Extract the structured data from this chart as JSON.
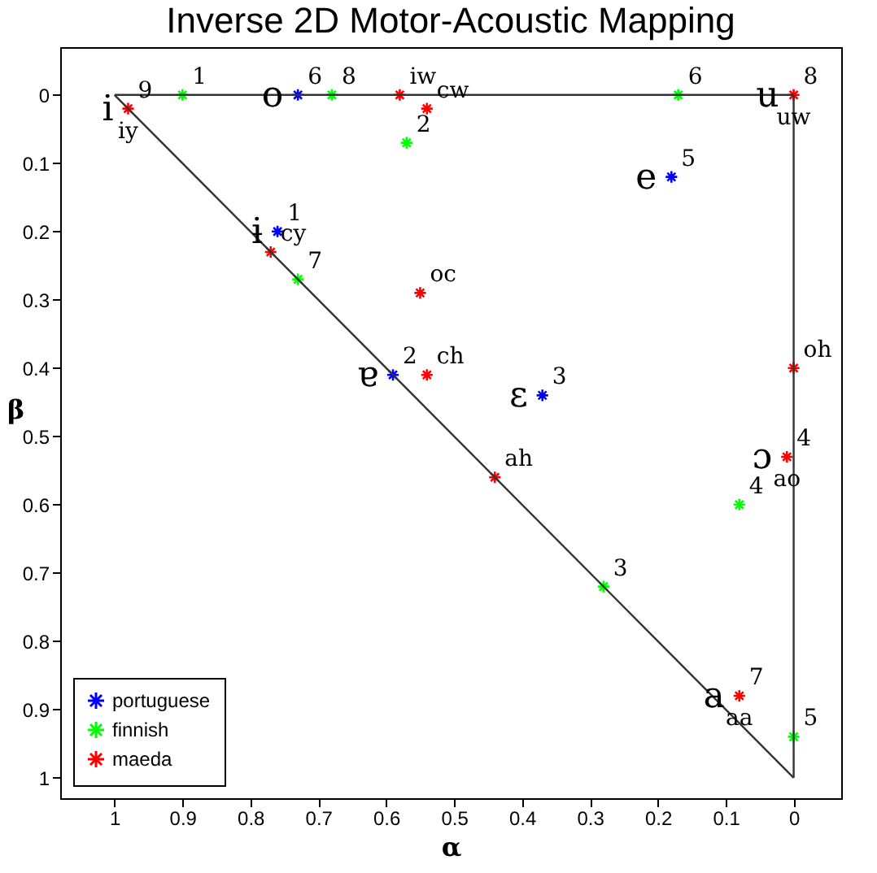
{
  "chart_data": {
    "type": "scatter",
    "title": "Inverse 2D Motor-Acoustic Mapping",
    "xlabel": "α",
    "ylabel": "β",
    "xlim": [
      1.08,
      -0.07
    ],
    "ylim": [
      1.03,
      -0.07
    ],
    "xticks": [
      1,
      0.9,
      0.8,
      0.7,
      0.6,
      0.5,
      0.4,
      0.3,
      0.2,
      0.1,
      0
    ],
    "yticks": [
      0,
      0.1,
      0.2,
      0.3,
      0.4,
      0.5,
      0.6,
      0.7,
      0.8,
      0.9,
      1
    ],
    "legend": "bottom left",
    "marker": "cross",
    "series": [
      {
        "name": "portuguese",
        "color": "#0000ff",
        "x": [
          0.73,
          0.76,
          0.59,
          0.18,
          0.37
        ],
        "values": [
          0,
          0.2,
          0.41,
          0.12,
          0.44
        ]
      },
      {
        "name": "finnish",
        "color": "#00ff00",
        "x": [
          0.9,
          0.68,
          0.57,
          0.73,
          0.17,
          0.28,
          0.08,
          0
        ],
        "values": [
          0,
          0,
          0.07,
          0.27,
          0,
          0.72,
          0.6,
          0.94
        ]
      },
      {
        "name": "maeda",
        "color": "#ff0000",
        "x": [
          0.98,
          0.58,
          0.54,
          0.77,
          0.55,
          0.54,
          0,
          0,
          0.01,
          0.44,
          0.08
        ],
        "values": [
          0.02,
          0,
          0.02,
          0.23,
          0.29,
          0.41,
          0,
          0.4,
          0.53,
          0.56,
          0.88
        ]
      },
      {
        "type": "line",
        "color": "#333333",
        "marker": "none",
        "x": [
          1,
          0
        ],
        "values": [
          0,
          0
        ]
      },
      {
        "type": "line",
        "color": "#333333",
        "marker": "none",
        "x": [
          0,
          0
        ],
        "values": [
          0,
          1
        ]
      },
      {
        "type": "line",
        "color": "#333333",
        "marker": "none",
        "x": [
          0,
          1
        ],
        "values": [
          1,
          0
        ]
      }
    ],
    "annotations": [
      {
        "text": "6",
        "x": 0.73,
        "y": 0
      },
      {
        "text": "o",
        "x": 0.73,
        "y": 0
      },
      {
        "text": "1",
        "x": 0.76,
        "y": 0.2
      },
      {
        "text": "ɨ",
        "x": 0.76,
        "y": 0.2
      },
      {
        "text": "2",
        "x": 0.59,
        "y": 0.41
      },
      {
        "text": "ɐ",
        "x": 0.59,
        "y": 0.41
      },
      {
        "text": "5",
        "x": 0.18,
        "y": 0.12
      },
      {
        "text": "e",
        "x": 0.18,
        "y": 0.12
      },
      {
        "text": "3",
        "x": 0.37,
        "y": 0.44
      },
      {
        "text": "ɛ",
        "x": 0.37,
        "y": 0.44
      },
      {
        "text": "1",
        "x": 0.9,
        "y": 0
      },
      {
        "text": "8",
        "x": 0.68,
        "y": 0
      },
      {
        "text": "2",
        "x": 0.57,
        "y": 0.07
      },
      {
        "text": "7",
        "x": 0.73,
        "y": 0.27
      },
      {
        "text": "6",
        "x": 0.17,
        "y": 0
      },
      {
        "text": "3",
        "x": 0.28,
        "y": 0.72
      },
      {
        "text": "4",
        "x": 0.08,
        "y": 0.6
      },
      {
        "text": "5",
        "x": 0,
        "y": 0.94
      },
      {
        "text": "9",
        "x": 0.98,
        "y": 0.02
      },
      {
        "text": "i",
        "x": 0.98,
        "y": 0.02
      },
      {
        "text": "iy",
        "x": 0.98,
        "y": 0.02
      },
      {
        "text": "iw",
        "x": 0.58,
        "y": 0
      },
      {
        "text": "cw",
        "x": 0.54,
        "y": 0.02
      },
      {
        "text": "cy",
        "x": 0.77,
        "y": 0.23
      },
      {
        "text": "oc",
        "x": 0.55,
        "y": 0.29
      },
      {
        "text": "ch",
        "x": 0.54,
        "y": 0.41
      },
      {
        "text": "8",
        "x": 0,
        "y": 0
      },
      {
        "text": "u",
        "x": 0,
        "y": 0
      },
      {
        "text": "uw",
        "x": 0,
        "y": 0
      },
      {
        "text": "oh",
        "x": 0,
        "y": 0.4
      },
      {
        "text": "4",
        "x": 0.01,
        "y": 0.53
      },
      {
        "text": "ɔ",
        "x": 0.01,
        "y": 0.53
      },
      {
        "text": "ao",
        "x": 0.01,
        "y": 0.53
      },
      {
        "text": "ah",
        "x": 0.44,
        "y": 0.56
      },
      {
        "text": "7",
        "x": 0.08,
        "y": 0.88
      },
      {
        "text": "a",
        "x": 0.08,
        "y": 0.88
      },
      {
        "text": "aa",
        "x": 0.08,
        "y": 0.88
      }
    ]
  }
}
